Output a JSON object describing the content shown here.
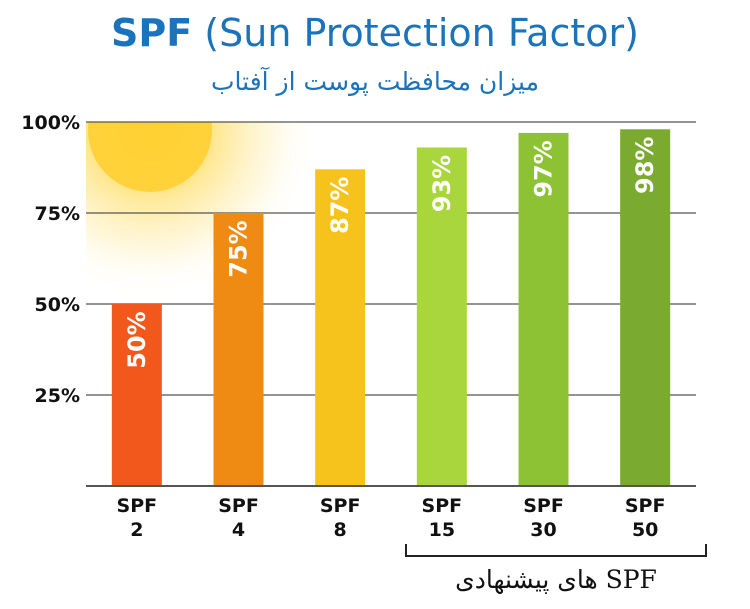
{
  "title": "SPF (Sun Protection Factor)",
  "title_bold": "SPF",
  "title_rest": " (Sun Protection Factor)",
  "subtitle": "میزان محافظت پوست از آفتاب",
  "recommended_label": "SPF های پیشنهادی",
  "colors": {
    "title": "#1b74bb",
    "grid": "#555555",
    "bars": [
      "#f2581c",
      "#ef8a12",
      "#f6c21c",
      "#a8d63c",
      "#8cc233",
      "#7aaa30"
    ]
  },
  "chart_data": {
    "type": "bar",
    "title": "SPF (Sun Protection Factor)",
    "xlabel": "",
    "ylabel": "",
    "categories": [
      "SPF 2",
      "SPF 4",
      "SPF 8",
      "SPF 15",
      "SPF 30",
      "SPF 50"
    ],
    "category_lines": [
      [
        "SPF",
        "2"
      ],
      [
        "SPF",
        "4"
      ],
      [
        "SPF",
        "8"
      ],
      [
        "SPF",
        "15"
      ],
      [
        "SPF",
        "30"
      ],
      [
        "SPF",
        "50"
      ]
    ],
    "values": [
      50,
      75,
      87,
      93,
      97,
      98
    ],
    "data_labels": [
      "50%",
      "75%",
      "87%",
      "93%",
      "97%",
      "98%"
    ],
    "yticks": [
      25,
      50,
      75,
      100
    ],
    "ytick_labels": [
      "25%",
      "50%",
      "75%",
      "100%"
    ],
    "ylim": [
      0,
      100
    ],
    "grid": true,
    "recommended_categories": [
      "SPF 15",
      "SPF 30",
      "SPF 50"
    ]
  }
}
